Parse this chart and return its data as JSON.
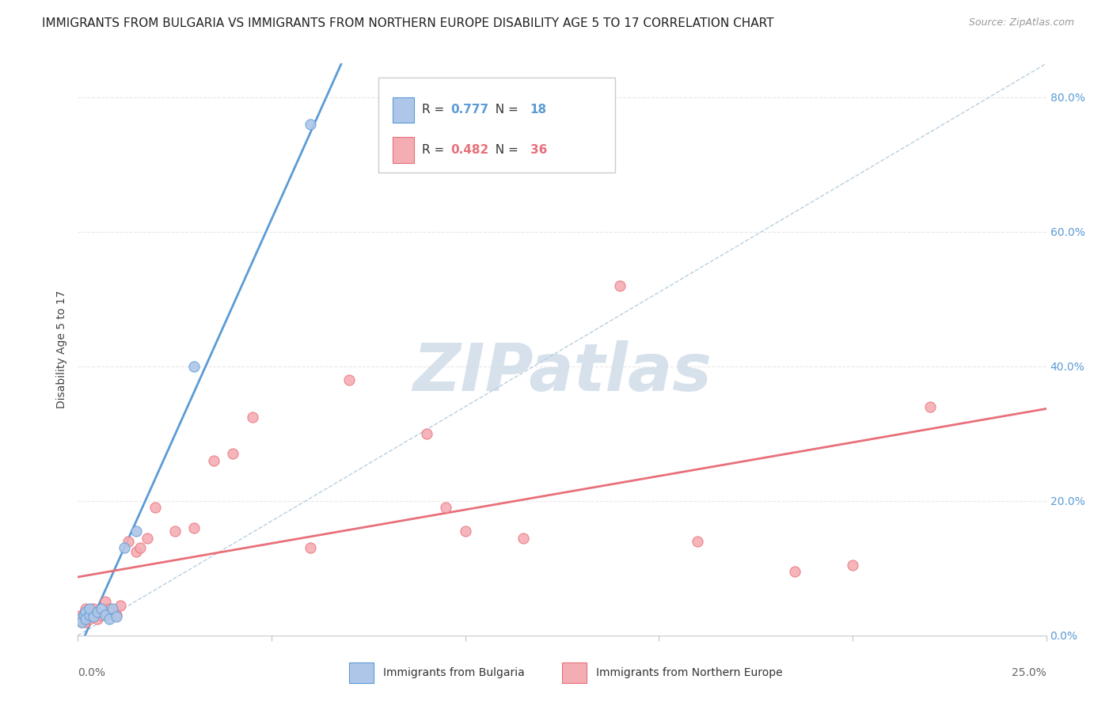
{
  "title": "IMMIGRANTS FROM BULGARIA VS IMMIGRANTS FROM NORTHERN EUROPE DISABILITY AGE 5 TO 17 CORRELATION CHART",
  "source": "Source: ZipAtlas.com",
  "ylabel": "Disability Age 5 to 17",
  "xlim": [
    0.0,
    0.25
  ],
  "ylim": [
    0.0,
    0.85
  ],
  "legend_r_blue": "0.777",
  "legend_n_blue": "18",
  "legend_r_pink": "0.482",
  "legend_n_pink": "36",
  "legend_label_blue": "Immigrants from Bulgaria",
  "legend_label_pink": "Immigrants from Northern Europe",
  "blue_scatter_x": [
    0.0005,
    0.001,
    0.0015,
    0.002,
    0.002,
    0.003,
    0.003,
    0.004,
    0.005,
    0.006,
    0.007,
    0.008,
    0.009,
    0.01,
    0.012,
    0.015,
    0.03,
    0.06
  ],
  "blue_scatter_y": [
    0.025,
    0.02,
    0.03,
    0.035,
    0.025,
    0.03,
    0.04,
    0.028,
    0.035,
    0.04,
    0.03,
    0.025,
    0.04,
    0.028,
    0.13,
    0.155,
    0.4,
    0.76
  ],
  "pink_scatter_x": [
    0.0005,
    0.001,
    0.001,
    0.002,
    0.002,
    0.003,
    0.003,
    0.004,
    0.005,
    0.006,
    0.007,
    0.008,
    0.009,
    0.01,
    0.011,
    0.013,
    0.015,
    0.016,
    0.018,
    0.02,
    0.025,
    0.03,
    0.035,
    0.04,
    0.045,
    0.06,
    0.07,
    0.09,
    0.095,
    0.1,
    0.115,
    0.14,
    0.16,
    0.185,
    0.2,
    0.22
  ],
  "pink_scatter_y": [
    0.025,
    0.02,
    0.03,
    0.02,
    0.04,
    0.025,
    0.035,
    0.04,
    0.025,
    0.03,
    0.05,
    0.04,
    0.035,
    0.03,
    0.045,
    0.14,
    0.125,
    0.13,
    0.145,
    0.19,
    0.155,
    0.16,
    0.26,
    0.27,
    0.325,
    0.13,
    0.38,
    0.3,
    0.19,
    0.155,
    0.145,
    0.52,
    0.14,
    0.095,
    0.105,
    0.34
  ],
  "blue_line_color": "#5b9bd5",
  "pink_line_color": "#e8707a",
  "blue_dot_color": "#aec6e8",
  "pink_dot_color": "#f4adb3",
  "diagonal_color": "#b8cfe0",
  "grid_color": "#e8e8e8",
  "background_color": "#ffffff",
  "title_fontsize": 11,
  "source_fontsize": 9,
  "axis_label_fontsize": 10,
  "tick_fontsize": 10,
  "legend_fontsize": 11,
  "watermark_text": "ZIPatlas",
  "watermark_color": "#d0dce8",
  "watermark_fontsize": 60
}
